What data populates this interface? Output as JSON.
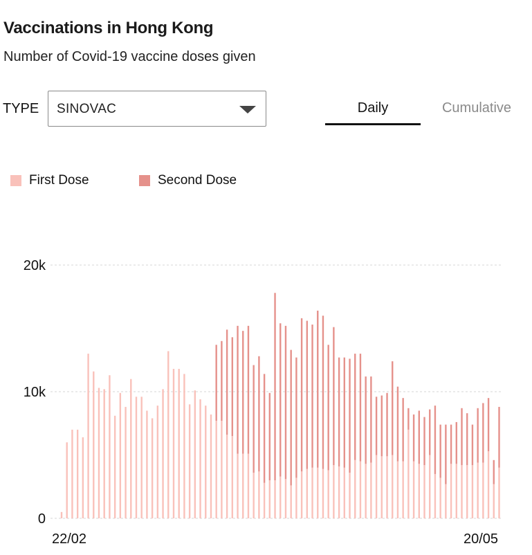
{
  "header": {
    "title": "Vaccinations in Hong Kong",
    "subtitle": "Number of Covid-19 vaccine doses given"
  },
  "controls": {
    "type_label": "TYPE",
    "type_select": {
      "value": "SINOVAC",
      "icon": "chevron-down-icon"
    },
    "tabs": [
      {
        "label": "Daily",
        "active": true
      },
      {
        "label": "Cumulative",
        "active": false
      }
    ]
  },
  "colors": {
    "first_dose": "#f9c1ba",
    "second_dose": "#e5918b",
    "grid": "#d6d6d6"
  },
  "legend": [
    {
      "label": "First Dose",
      "color": "#f9c1ba"
    },
    {
      "label": "Second Dose",
      "color": "#e5918b"
    }
  ],
  "chart_data": {
    "type": "bar",
    "stacked": true,
    "x_tick_labels": [
      "22/02",
      "20/05"
    ],
    "yticks": [
      "0",
      "10k",
      "20k"
    ],
    "ylim": [
      0,
      20000
    ],
    "grid": true,
    "legend_position": "top-left",
    "series": [
      {
        "name": "First Dose",
        "values": [
          500,
          6000,
          7000,
          7000,
          6400,
          13000,
          11600,
          10300,
          10200,
          11300,
          8100,
          9900,
          8800,
          11000,
          9600,
          9600,
          8500,
          7900,
          8900,
          10200,
          13200,
          11800,
          11800,
          11400,
          9000,
          10100,
          9400,
          8900,
          8200,
          7700,
          7700,
          6600,
          6500,
          5100,
          5100,
          5100,
          3600,
          3700,
          2800,
          3000,
          3000,
          3300,
          3100,
          2600,
          3200,
          3700,
          3900,
          4000,
          4000,
          3900,
          3800,
          4200,
          4100,
          4000,
          3600,
          4600,
          4500,
          4300,
          4400,
          5000,
          4900,
          4900,
          5000,
          4500,
          4500,
          7000,
          4500,
          4300,
          4200,
          5000,
          3500,
          3200,
          2700,
          4300,
          4300,
          4200,
          4200,
          4200,
          4400,
          4400,
          5300,
          2700,
          4000
        ]
      },
      {
        "name": "Second Dose",
        "values": [
          0,
          0,
          0,
          0,
          0,
          0,
          0,
          0,
          0,
          0,
          0,
          0,
          0,
          0,
          0,
          0,
          0,
          0,
          0,
          0,
          0,
          0,
          0,
          0,
          0,
          0,
          0,
          0,
          0,
          6000,
          6300,
          8300,
          7800,
          10100,
          9700,
          10100,
          8500,
          9100,
          8600,
          6900,
          14800,
          12100,
          12100,
          10700,
          9500,
          12100,
          11700,
          11300,
          12400,
          12100,
          9900,
          10900,
          8600,
          8700,
          9000,
          8400,
          8500,
          6900,
          6800,
          4600,
          4800,
          5000,
          7400,
          5900,
          5000,
          1700,
          3700,
          4200,
          3800,
          3600,
          5400,
          4200,
          4700,
          3100,
          3300,
          4500,
          4100,
          3200,
          4300,
          4700,
          4200,
          1900,
          4800
        ]
      }
    ]
  }
}
